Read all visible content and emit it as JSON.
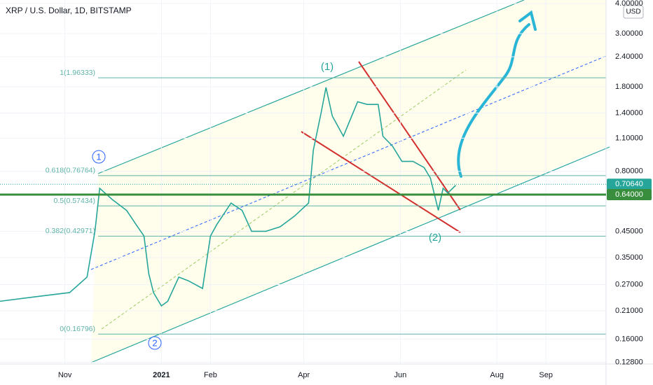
{
  "chart_data": {
    "type": "line",
    "title": "XRP / U.S. Dollar, 1D, BITSTAMP",
    "currency": "USD",
    "x": [
      0,
      22,
      44,
      55,
      60,
      63,
      71,
      80,
      86,
      91,
      94,
      97,
      102,
      106,
      113,
      119,
      128,
      133,
      137,
      146,
      153,
      159,
      168,
      177,
      186,
      195,
      198,
      203,
      206,
      210,
      217,
      226,
      232,
      239,
      242,
      248,
      254,
      261,
      268,
      272,
      277,
      280,
      283,
      288
    ],
    "values": [
      0.23,
      0.24,
      0.25,
      0.29,
      0.45,
      0.68,
      0.61,
      0.55,
      0.48,
      0.43,
      0.3,
      0.25,
      0.22,
      0.23,
      0.29,
      0.28,
      0.26,
      0.43,
      0.48,
      0.59,
      0.55,
      0.45,
      0.45,
      0.47,
      0.52,
      0.59,
      0.98,
      1.41,
      1.79,
      1.36,
      1.12,
      1.56,
      1.52,
      1.52,
      1.12,
      1.02,
      0.88,
      0.88,
      0.83,
      0.75,
      0.55,
      0.68,
      0.65,
      0.7
    ],
    "color": "#26a69a",
    "log_scale": true,
    "grid": true,
    "xlim": [
      0,
      383
    ],
    "xticks": [
      {
        "value": 41,
        "label": "Nov"
      },
      {
        "value": 102,
        "label": "2021"
      },
      {
        "value": 133,
        "label": "Feb"
      },
      {
        "value": 192,
        "label": "Apr"
      },
      {
        "value": 253,
        "label": "Jun"
      },
      {
        "value": 314,
        "label": "Aug"
      },
      {
        "value": 345,
        "label": "Sep"
      }
    ],
    "ylim": [
      0.126,
      4.14
    ],
    "yticks": [
      {
        "value": 4,
        "label": "4.00000"
      },
      {
        "value": 3,
        "label": "3.00000"
      },
      {
        "value": 2.4,
        "label": "2.40000"
      },
      {
        "value": 1.8,
        "label": "1.80000"
      },
      {
        "value": 1.4,
        "label": "1.40000"
      },
      {
        "value": 1.1,
        "label": "1.10000"
      },
      {
        "value": 0.8,
        "label": "0.80000"
      },
      {
        "value": 0.45,
        "label": "0.45000"
      },
      {
        "value": 0.35,
        "label": "0.35000"
      },
      {
        "value": 0.27,
        "label": "0.27000"
      },
      {
        "value": 0.21,
        "label": "0.21000"
      },
      {
        "value": 0.16,
        "label": "0.16000"
      },
      {
        "value": 0.128,
        "label": "0.12800"
      }
    ],
    "fib_levels": [
      {
        "value": 1.96333,
        "label": "1(1.96333)"
      },
      {
        "value": 0.76764,
        "label": "0.618(0.76764)"
      },
      {
        "value": 0.57434,
        "label": "0.5(0.57434)"
      },
      {
        "value": 0.42971,
        "label": "0.382(0.42971)"
      },
      {
        "value": 0.16796,
        "label": "0(0.16796)"
      }
    ],
    "price_lines": [
      {
        "value": 0.7064,
        "label": "0.70640",
        "color": "#26a69a"
      },
      {
        "value": 0.64,
        "label": "0.64000",
        "color": "#388e3c"
      }
    ],
    "annotations": [
      "(1)",
      "(2)",
      "1",
      "2"
    ]
  }
}
